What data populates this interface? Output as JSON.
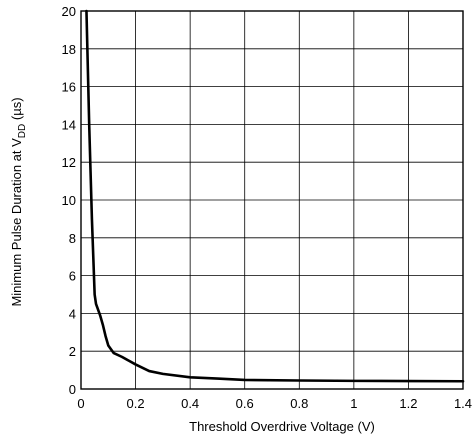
{
  "chart_data": {
    "type": "line",
    "title": "",
    "xlabel": "Threshold Overdrive Voltage (V)",
    "ylabel_main": "Minimum Pulse Duration at V",
    "ylabel_sub": "DD",
    "ylabel_unit": " (µs)",
    "xlim": [
      0,
      1.4
    ],
    "ylim": [
      0,
      20
    ],
    "grid": true,
    "x_ticks": [
      "0",
      "0.2",
      "0.4",
      "0.6",
      "0.8",
      "1",
      "1.2",
      "1.4"
    ],
    "y_ticks": [
      "0",
      "2",
      "4",
      "6",
      "8",
      "10",
      "12",
      "14",
      "16",
      "18",
      "20"
    ],
    "series": [
      {
        "x": [
          0.02,
          0.025,
          0.03,
          0.035,
          0.04,
          0.045,
          0.05,
          0.055,
          0.06,
          0.07,
          0.08,
          0.09,
          0.1,
          0.12,
          0.15,
          0.2,
          0.25,
          0.3,
          0.4,
          0.5,
          0.6,
          0.8,
          1.0,
          1.2,
          1.4
        ],
        "y": [
          20.0,
          17.0,
          14.0,
          11.5,
          9.0,
          7.0,
          5.0,
          4.5,
          4.3,
          3.9,
          3.4,
          2.8,
          2.3,
          1.9,
          1.7,
          1.3,
          0.95,
          0.8,
          0.62,
          0.55,
          0.48,
          0.45,
          0.43,
          0.42,
          0.41
        ]
      }
    ]
  }
}
